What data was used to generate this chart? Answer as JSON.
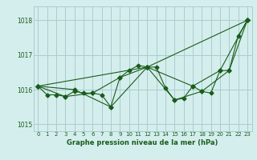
{
  "title": "Graphe pression niveau de la mer (hPa)",
  "background_color": "#d4eeed",
  "grid_color": "#aacccc",
  "line_color": "#1a5c1a",
  "xlim": [
    -0.5,
    23.5
  ],
  "ylim": [
    1014.8,
    1018.4
  ],
  "yticks": [
    1015,
    1016,
    1017,
    1018
  ],
  "xticks": [
    0,
    1,
    2,
    3,
    4,
    5,
    6,
    7,
    8,
    9,
    10,
    11,
    12,
    13,
    14,
    15,
    16,
    17,
    18,
    19,
    20,
    21,
    22,
    23
  ],
  "series": [
    {
      "x": [
        0,
        1,
        2,
        3,
        4,
        5,
        6,
        7,
        8,
        9,
        10,
        11,
        12,
        13,
        14,
        15,
        16,
        17,
        18,
        19,
        20,
        21,
        22,
        23
      ],
      "y": [
        1016.1,
        1015.85,
        1015.85,
        1015.8,
        1015.95,
        1015.9,
        1015.9,
        1015.85,
        1015.5,
        1016.35,
        1016.55,
        1016.7,
        1016.65,
        1016.65,
        1016.05,
        1015.7,
        1015.75,
        1016.1,
        1015.95,
        1015.9,
        1016.55,
        1016.55,
        1017.55,
        1018.0
      ]
    },
    {
      "x": [
        0,
        4,
        8,
        12,
        17,
        20,
        23
      ],
      "y": [
        1016.1,
        1016.0,
        1015.5,
        1016.65,
        1016.1,
        1016.55,
        1018.0
      ]
    },
    {
      "x": [
        0,
        3,
        6,
        9,
        12,
        15,
        18,
        21,
        23
      ],
      "y": [
        1016.1,
        1015.8,
        1015.9,
        1016.35,
        1016.65,
        1015.7,
        1015.95,
        1016.55,
        1018.0
      ]
    },
    {
      "x": [
        0,
        12,
        23
      ],
      "y": [
        1016.1,
        1016.65,
        1018.0
      ]
    }
  ],
  "marker": "D",
  "markersize": 2.5,
  "linewidth": 0.8
}
